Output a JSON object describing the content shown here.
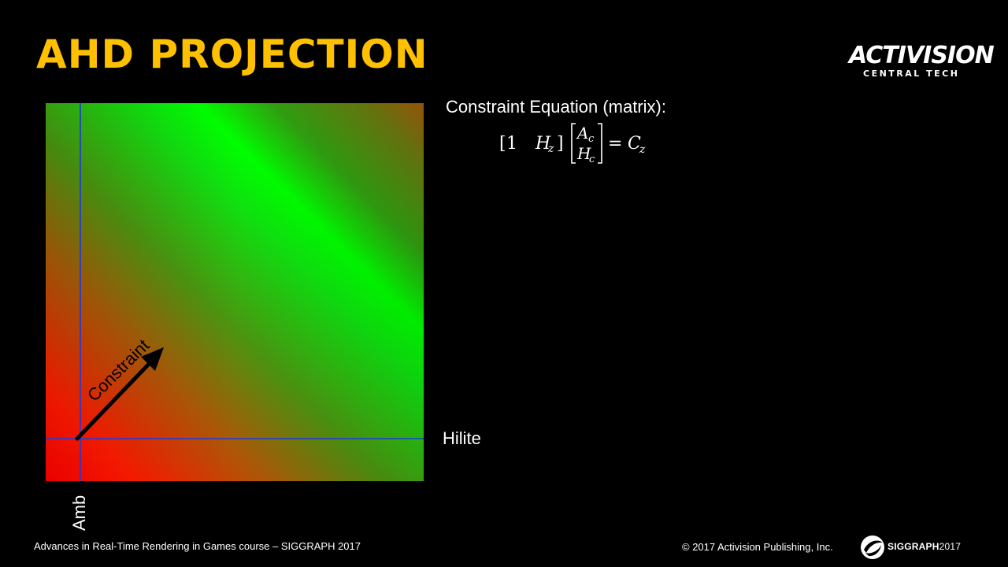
{
  "slide": {
    "title": "AHD PROJECTION",
    "title_color": "#FFC000",
    "background": "#000000"
  },
  "logo": {
    "line1": "ACTIVISION",
    "line2": "CENTRAL TECH"
  },
  "plot": {
    "x_axis_label": "Hilite",
    "y_axis_label": "Amb",
    "arrow_label": "Constraint",
    "axis_line_color": "#1F3AD8",
    "gradient_colors": {
      "red": "#FF0000",
      "green": "#00FF00",
      "mid": "#3A9A10",
      "corner": "#9A5A10"
    }
  },
  "equation": {
    "heading": "Constraint Equation (matrix):",
    "row_vector": [
      "1",
      "H",
      "z"
    ],
    "column_vector": [
      [
        "A",
        "c"
      ],
      [
        "H",
        "c"
      ]
    ],
    "rhs": [
      "C",
      "z"
    ],
    "equals": "="
  },
  "footer": {
    "course": "Advances in Real-Time Rendering in Games course – SIGGRAPH 2017",
    "copyright": "© 2017 Activision Publishing, Inc.",
    "siggraph_bold": "SIGGRAPH",
    "siggraph_year": "2017"
  }
}
